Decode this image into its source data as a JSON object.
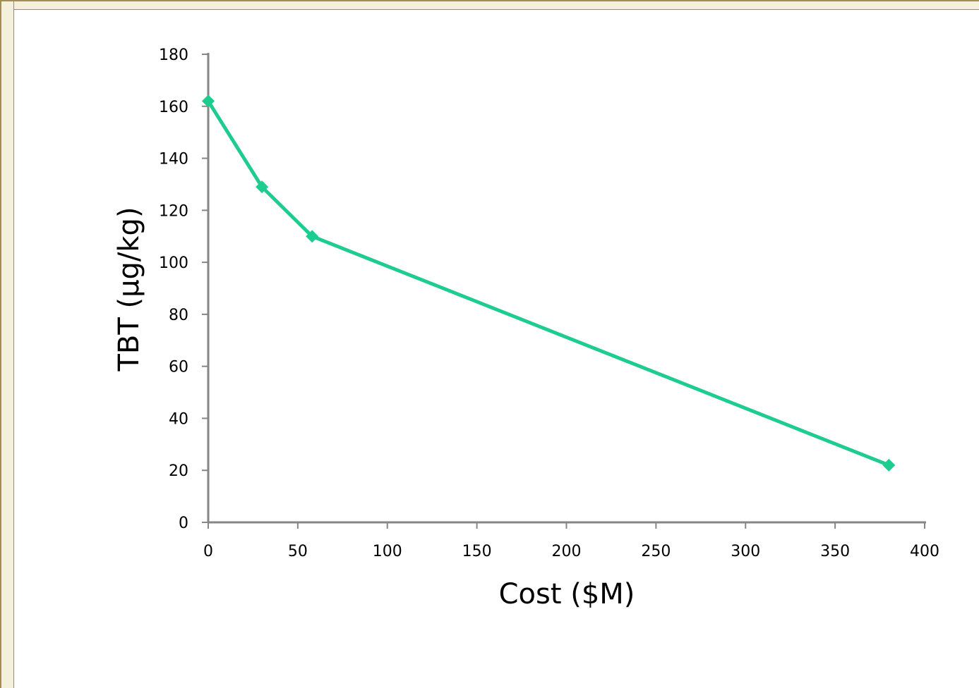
{
  "colors": {
    "series": "#1fcc8f",
    "axis": "#868686",
    "frame": "#a08e55",
    "frame_fill": "#f4f0de"
  },
  "chart_data": {
    "type": "line",
    "title": "",
    "xlabel": "Cost ($M)",
    "ylabel": "TBT (µg/kg)",
    "xlim": [
      0,
      400
    ],
    "ylim": [
      0,
      180
    ],
    "xticks": [
      0,
      50,
      100,
      150,
      200,
      250,
      300,
      350,
      400
    ],
    "yticks": [
      0,
      20,
      40,
      60,
      80,
      100,
      120,
      140,
      160,
      180
    ],
    "grid": false,
    "legend": "none",
    "series": [
      {
        "marker": "diamond",
        "x": [
          0,
          30,
          58,
          380
        ],
        "y": [
          162,
          129,
          110,
          22
        ]
      }
    ]
  }
}
